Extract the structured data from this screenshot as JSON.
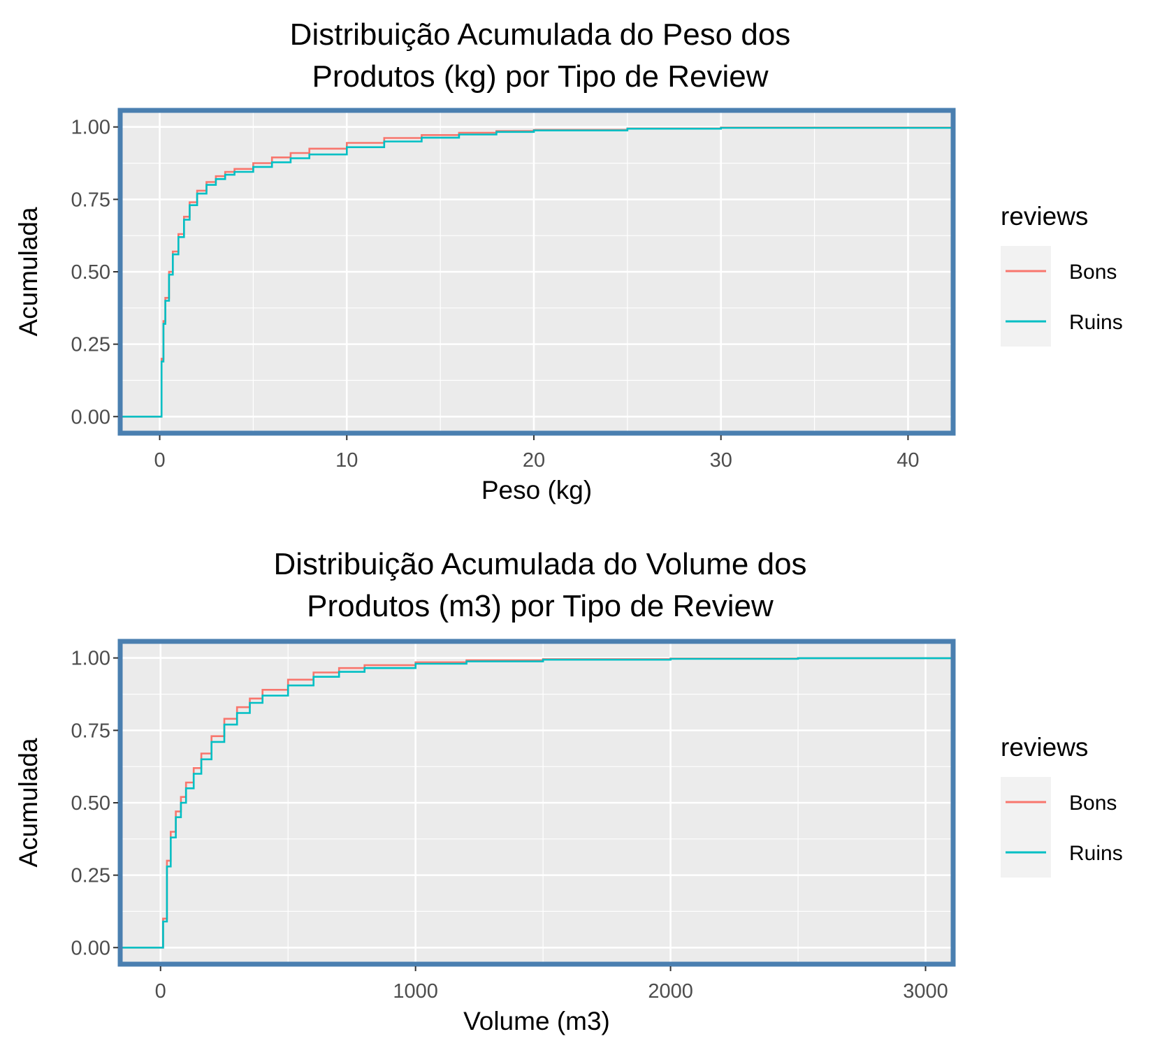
{
  "colors": {
    "panel_background": "#ebebeb",
    "grid": "#ffffff",
    "panel_border": "#4a7fb0",
    "tick": "#333333",
    "legend_key_background": "#f2f2f2"
  },
  "chart_data": [
    {
      "type": "line",
      "title_lines": [
        "Distribuição Acumulada do Peso dos",
        "Produtos (kg) por Tipo de Review"
      ],
      "xlabel": "Peso (kg)",
      "ylabel": "Acumulada",
      "xlim": [
        -2,
        42.3
      ],
      "ylim": [
        -0.05,
        1.05
      ],
      "x_ticks": [
        0,
        10,
        20,
        30,
        40
      ],
      "x_tick_labels": [
        "0",
        "10",
        "20",
        "30",
        "40"
      ],
      "y_ticks": [
        0,
        0.25,
        0.5,
        0.75,
        1
      ],
      "y_tick_labels": [
        "0.00",
        "0.25",
        "0.50",
        "0.75",
        "1.00"
      ],
      "grid": true,
      "legend": {
        "title": "reviews",
        "position": "right"
      },
      "series": [
        {
          "name": "Bons",
          "color": "#f8766d",
          "x": [
            -2,
            0,
            0.1,
            0.2,
            0.3,
            0.5,
            0.7,
            1.0,
            1.3,
            1.6,
            2.0,
            2.5,
            3.0,
            3.5,
            4.0,
            5.0,
            6.0,
            7.0,
            8.0,
            10.0,
            12.0,
            14.0,
            16.0,
            18.0,
            20.0,
            25.0,
            30.0,
            42.3
          ],
          "y": [
            0,
            0,
            0.2,
            0.33,
            0.41,
            0.5,
            0.57,
            0.63,
            0.69,
            0.74,
            0.78,
            0.81,
            0.83,
            0.845,
            0.855,
            0.875,
            0.895,
            0.91,
            0.925,
            0.945,
            0.962,
            0.972,
            0.98,
            0.986,
            0.99,
            0.995,
            0.998,
            1.0
          ]
        },
        {
          "name": "Ruins",
          "color": "#00bfc4",
          "x": [
            -2,
            0,
            0.1,
            0.2,
            0.3,
            0.5,
            0.7,
            1.0,
            1.3,
            1.6,
            2.0,
            2.5,
            3.0,
            3.5,
            4.0,
            5.0,
            6.0,
            7.0,
            8.0,
            10.0,
            12.0,
            14.0,
            16.0,
            18.0,
            20.0,
            25.0,
            30.0,
            42.3
          ],
          "y": [
            0,
            0,
            0.19,
            0.32,
            0.4,
            0.49,
            0.56,
            0.62,
            0.68,
            0.73,
            0.77,
            0.8,
            0.82,
            0.835,
            0.845,
            0.862,
            0.878,
            0.892,
            0.905,
            0.93,
            0.95,
            0.963,
            0.974,
            0.983,
            0.988,
            0.994,
            0.997,
            1.0
          ]
        }
      ]
    },
    {
      "type": "line",
      "title_lines": [
        "Distribuição Acumulada do Volume dos",
        "Produtos (m3) por Tipo de Review"
      ],
      "xlabel": "Volume (m3)",
      "ylabel": "Acumulada",
      "xlim": [
        -150,
        3100
      ],
      "ylim": [
        -0.05,
        1.05
      ],
      "x_ticks": [
        0,
        1000,
        2000,
        3000
      ],
      "x_tick_labels": [
        "0",
        "1000",
        "2000",
        "3000"
      ],
      "y_ticks": [
        0,
        0.25,
        0.5,
        0.75,
        1
      ],
      "y_tick_labels": [
        "0.00",
        "0.25",
        "0.50",
        "0.75",
        "1.00"
      ],
      "grid": true,
      "legend": {
        "title": "reviews",
        "position": "right"
      },
      "series": [
        {
          "name": "Bons",
          "color": "#f8766d",
          "x": [
            -150,
            0,
            10,
            25,
            40,
            60,
            80,
            100,
            130,
            160,
            200,
            250,
            300,
            350,
            400,
            500,
            600,
            700,
            800,
            1000,
            1200,
            1500,
            2000,
            2500,
            3100
          ],
          "y": [
            0,
            0,
            0.1,
            0.3,
            0.4,
            0.47,
            0.52,
            0.57,
            0.62,
            0.67,
            0.73,
            0.79,
            0.83,
            0.86,
            0.89,
            0.925,
            0.95,
            0.965,
            0.975,
            0.985,
            0.992,
            0.996,
            0.998,
            0.999,
            1.0
          ]
        },
        {
          "name": "Ruins",
          "color": "#00bfc4",
          "x": [
            -150,
            0,
            10,
            25,
            40,
            60,
            80,
            100,
            130,
            160,
            200,
            250,
            300,
            350,
            400,
            500,
            600,
            700,
            800,
            1000,
            1200,
            1500,
            2000,
            2500,
            3100
          ],
          "y": [
            0,
            0,
            0.09,
            0.28,
            0.38,
            0.45,
            0.5,
            0.55,
            0.6,
            0.65,
            0.71,
            0.77,
            0.81,
            0.845,
            0.87,
            0.905,
            0.935,
            0.952,
            0.965,
            0.98,
            0.988,
            0.994,
            0.997,
            0.999,
            1.0
          ]
        }
      ]
    }
  ]
}
